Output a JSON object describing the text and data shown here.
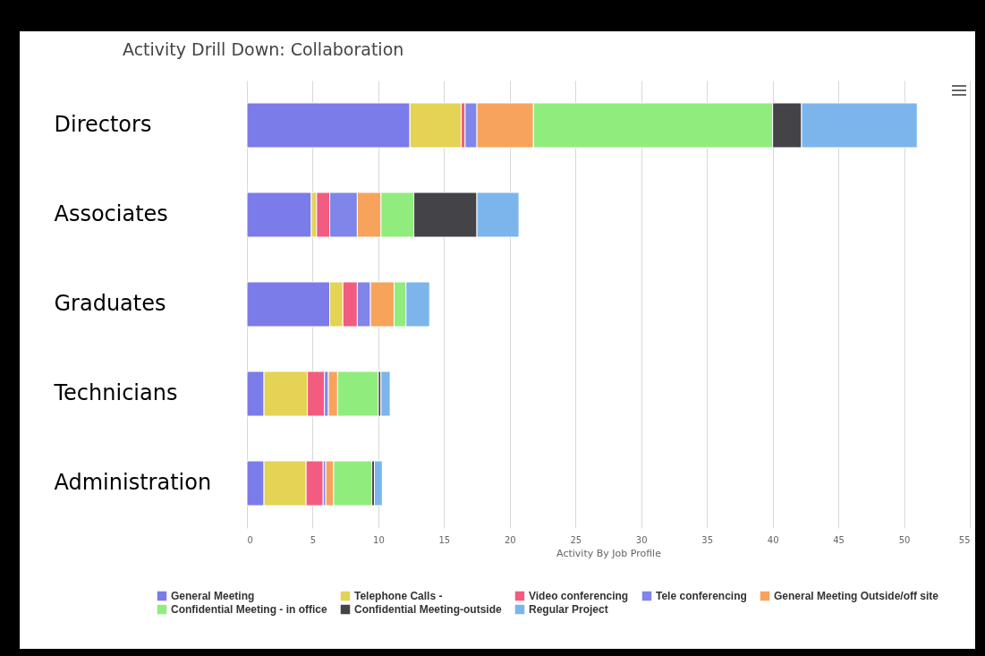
{
  "chart_data": {
    "type": "bar",
    "orientation": "horizontal",
    "stacked": true,
    "title": "Activity Drill Down: Collaboration",
    "xlabel": "Activity By Job Profile",
    "categories": [
      "Directors",
      "Associates",
      "Graduates",
      "Technicians",
      "Administration"
    ],
    "series": [
      {
        "name": "General Meeting",
        "color": "#7b7bea",
        "values": [
          12.4,
          4.9,
          6.3,
          1.3,
          1.3
        ]
      },
      {
        "name": "Telephone Calls -",
        "color": "#e4d354",
        "values": [
          3.9,
          0.4,
          1.0,
          3.3,
          3.2
        ]
      },
      {
        "name": "Video conferencing",
        "color": "#f15c80",
        "values": [
          0.3,
          1.0,
          1.1,
          1.3,
          1.3
        ]
      },
      {
        "name": "Tele conferencing",
        "color": "#8085e9",
        "values": [
          0.9,
          2.1,
          1.0,
          0.3,
          0.2
        ]
      },
      {
        "name": "General Meeting Outside/off site",
        "color": "#f7a35c",
        "values": [
          4.3,
          1.8,
          1.8,
          0.7,
          0.6
        ]
      },
      {
        "name": "Confidential Meeting - in office",
        "color": "#90ed7d",
        "values": [
          18.2,
          2.5,
          0.9,
          3.1,
          2.9
        ]
      },
      {
        "name": "Confidential Meeting-outside",
        "color": "#434348",
        "values": [
          2.2,
          4.8,
          0,
          0.2,
          0.2
        ]
      },
      {
        "name": "Regular Project",
        "color": "#7cb5ec",
        "values": [
          8.8,
          3.2,
          1.8,
          0.7,
          0.6
        ]
      }
    ],
    "xlim": [
      0,
      55
    ],
    "xticks": [
      0,
      5,
      10,
      15,
      20,
      25,
      30,
      35,
      40,
      45,
      50,
      55
    ],
    "grid": "x",
    "legend": "bottom"
  }
}
